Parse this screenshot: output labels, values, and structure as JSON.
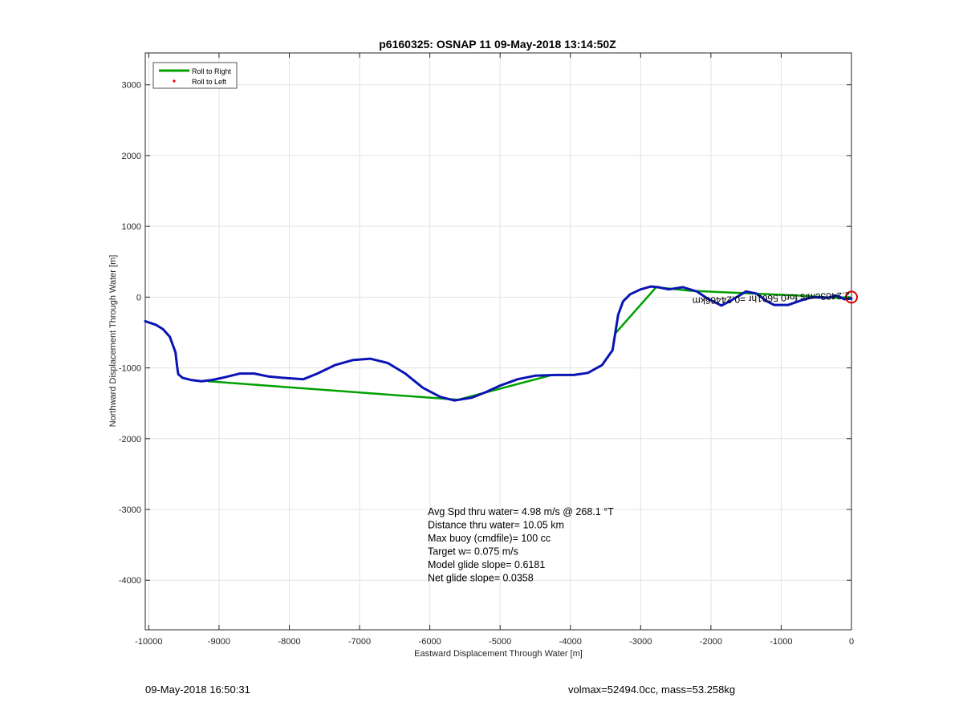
{
  "chart_data": {
    "type": "line",
    "title": "p6160325: OSNAP 11 09-May-2018 13:14:50Z",
    "xlabel": "Eastward Displacement Through Water [m]",
    "ylabel": "Northward Displacement Through Water [m]",
    "xlim": [
      -10050,
      0
    ],
    "ylim": [
      -4700,
      3450
    ],
    "xticks": [
      -10000,
      -9000,
      -8000,
      -7000,
      -6000,
      -5000,
      -4000,
      -3000,
      -2000,
      -1000,
      0
    ],
    "yticks": [
      3000,
      2000,
      1000,
      0,
      -1000,
      -2000,
      -3000,
      -4000
    ],
    "grid": true,
    "legend_position": "top-left",
    "legend": [
      {
        "label": "Roll to Right",
        "color": "#00a000",
        "marker": "line"
      },
      {
        "label": "Roll to Left",
        "color": "#e00000",
        "marker": "dot"
      }
    ],
    "series": [
      {
        "color": "#0a14b4",
        "x": [
          -10050,
          -9900,
          -9800,
          -9700,
          -9620,
          -9600,
          -9590,
          -9580,
          -9520,
          -9400,
          -9250,
          -9100,
          -8950,
          -8700,
          -8500,
          -8300,
          -8100,
          -7800,
          -7600,
          -7350,
          -7100,
          -6850,
          -6600,
          -6350,
          -6100,
          -5850,
          -5650,
          -5400,
          -5200,
          -5000,
          -4750,
          -4500,
          -4200,
          -3950,
          -3750,
          -3550,
          -3400,
          -3320,
          -3250,
          -3150,
          -3000,
          -2850,
          -2750,
          -2600,
          -2400,
          -2200,
          -2050,
          -1850,
          -1700,
          -1500,
          -1350,
          -1200,
          -1100,
          -900,
          -700,
          -550,
          -350,
          -200,
          -100,
          0
        ],
        "y": [
          -340,
          -390,
          -450,
          -560,
          -780,
          -950,
          -1030,
          -1090,
          -1140,
          -1170,
          -1190,
          -1170,
          -1140,
          -1080,
          -1080,
          -1120,
          -1140,
          -1160,
          -1080,
          -960,
          -890,
          -870,
          -930,
          -1080,
          -1280,
          -1410,
          -1460,
          -1420,
          -1340,
          -1250,
          -1160,
          -1110,
          -1100,
          -1100,
          -1070,
          -960,
          -750,
          -250,
          -60,
          40,
          110,
          150,
          140,
          110,
          140,
          80,
          -20,
          -120,
          -40,
          80,
          50,
          -60,
          -110,
          -110,
          -40,
          0,
          -10,
          20,
          -30,
          -20
        ]
      },
      {
        "name": "Roll to Right",
        "color": "#00a000",
        "x": [
          -9150,
          -5600,
          -4300
        ],
        "y": [
          -1190,
          -1450,
          -1110
        ]
      },
      {
        "name": "Roll to Right",
        "color": "#00a000",
        "x": [
          -3350,
          -2780,
          -2300,
          -1600,
          -700,
          -250,
          -30
        ],
        "y": [
          -500,
          140,
          90,
          60,
          20,
          -10,
          0
        ]
      }
    ],
    "end_marker": {
      "x": 0,
      "y": 0,
      "color": "#e00000"
    },
    "rotated_annotation": "2.2403cm/s for0.5601hr =0.24466km",
    "annotations": [
      "Avg Spd thru water=  4.98 m/s @ 268.1 °T",
      "Distance thru water= 10.05 km",
      "Max buoy (cmdfile)= 100 cc",
      "Target w= 0.075 m/s",
      "Model glide slope= 0.6181",
      "Net glide slope= 0.0358"
    ]
  },
  "footer": {
    "timestamp": "09-May-2018 16:50:31",
    "summary": "volmax=52494.0cc, mass=53.258kg"
  }
}
